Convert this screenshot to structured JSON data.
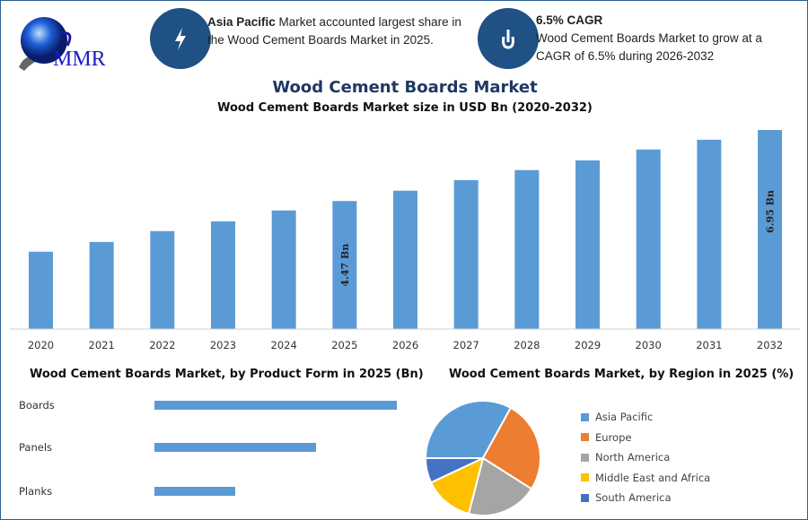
{
  "header": {
    "logo_text": "MMR",
    "info1": {
      "icon": "lightning-icon",
      "bold": "Asia Pacific",
      "text": " Market accounted largest share in the Wood Cement Boards Market in 2025."
    },
    "info2": {
      "icon": "growth-icon",
      "bold": "6.5% CAGR",
      "text": "Wood Cement Boards Market to grow at a CAGR of 6.5% during 2026-2032"
    }
  },
  "title": "Wood Cement Boards Market",
  "colors": {
    "bar": "#5b9bd5",
    "title": "#1f3864",
    "icon_bg": "#1f5184",
    "border": "#2e6093"
  },
  "chart_data": [
    {
      "type": "bar",
      "title": "Wood Cement Boards Market size in USD Bn (2020-2032)",
      "categories": [
        "2020",
        "2021",
        "2022",
        "2023",
        "2024",
        "2025",
        "2026",
        "2027",
        "2028",
        "2029",
        "2030",
        "2031",
        "2032"
      ],
      "values": [
        2.7,
        3.04,
        3.42,
        3.76,
        4.14,
        4.47,
        4.83,
        5.2,
        5.55,
        5.89,
        6.27,
        6.61,
        6.95
      ],
      "data_labels": {
        "2025": "4.47 Bn",
        "2032": "6.95 Bn"
      },
      "ylim": [
        0,
        7
      ],
      "grid": false
    },
    {
      "type": "bar",
      "orientation": "horizontal",
      "title": "Wood Cement Boards Market, by Product Form in 2025 (Bn)",
      "categories": [
        "Boards",
        "Panels",
        "Planks"
      ],
      "values": [
        2.24,
        1.49,
        0.75
      ]
    },
    {
      "type": "pie",
      "title": "Wood Cement Boards Market, by Region in 2025 (%)",
      "categories": [
        "Asia Pacific",
        "Europe",
        "North America",
        "Middle East and Africa",
        "South America"
      ],
      "values": [
        33,
        26,
        20,
        14,
        7
      ],
      "colors": [
        "#5b9bd5",
        "#ed7d31",
        "#a5a5a5",
        "#ffc000",
        "#4472c4"
      ],
      "legend": "right"
    }
  ]
}
